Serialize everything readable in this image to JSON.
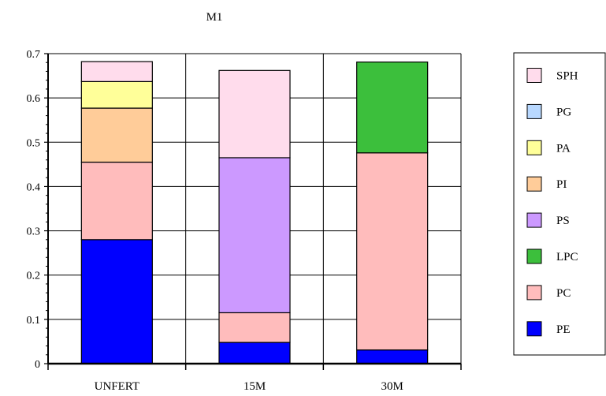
{
  "chart_data": {
    "type": "bar",
    "stacked": true,
    "title": "M1",
    "xlabel": "",
    "ylabel": "",
    "categories": [
      "UNFERT",
      "15M",
      "30M"
    ],
    "ylim": [
      0,
      0.7
    ],
    "yticks": [
      "0",
      "0.1",
      "0.2",
      "0.3",
      "0.4",
      "0.5",
      "0.6",
      "0.7"
    ],
    "grid": true,
    "legend_position": "right",
    "series": [
      {
        "name": "PE",
        "color": "#0000ff",
        "values": [
          0.28,
          0.048,
          0.031
        ]
      },
      {
        "name": "PC",
        "color": "#ffbcbc",
        "values": [
          0.175,
          0.067,
          0.445
        ]
      },
      {
        "name": "LPC",
        "color": "#3cbf3c",
        "values": [
          0,
          0,
          0.205
        ]
      },
      {
        "name": "PS",
        "color": "#cc99ff",
        "values": [
          0,
          0.35,
          0
        ]
      },
      {
        "name": "PI",
        "color": "#ffcc99",
        "values": [
          0.122,
          0,
          0
        ]
      },
      {
        "name": "PA",
        "color": "#ffff99",
        "values": [
          0.06,
          0,
          0
        ]
      },
      {
        "name": "PG",
        "color": "#b8d8ff",
        "values": [
          0,
          0,
          0
        ]
      },
      {
        "name": "SPH",
        "color": "#ffdcec",
        "values": [
          0.045,
          0.197,
          0
        ]
      }
    ],
    "legend_order": [
      "SPH",
      "PG",
      "PA",
      "PI",
      "PS",
      "LPC",
      "PC",
      "PE"
    ]
  }
}
